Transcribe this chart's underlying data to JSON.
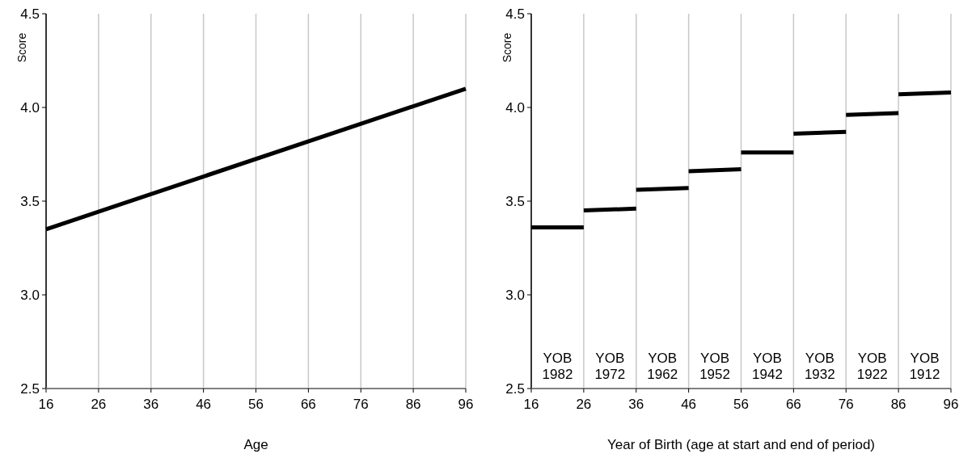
{
  "chart_data": [
    {
      "type": "line",
      "xlabel": "Age",
      "ylabel": "Score",
      "xlim": [
        16,
        96
      ],
      "xticks": [
        16,
        26,
        36,
        46,
        56,
        66,
        76,
        86,
        96
      ],
      "ylim": [
        2.5,
        4.5
      ],
      "yticks": [
        {
          "value": 2.5,
          "label": "2.5"
        },
        {
          "value": 3,
          "label": "3.0"
        },
        {
          "value": 3.5,
          "label": "3.5"
        },
        {
          "value": 4,
          "label": "4.0"
        },
        {
          "value": 4.5,
          "label": "4.5"
        }
      ],
      "grid": "x",
      "series": [
        {
          "color": "#000000",
          "x": [
            16,
            96
          ],
          "values": [
            3.35,
            4.1
          ]
        }
      ]
    },
    {
      "type": "line",
      "xlabel": "Year of Birth (age at start and end of period)",
      "ylabel": "Score",
      "xlim": [
        16,
        96
      ],
      "xticks": [
        16,
        26,
        36,
        46,
        56,
        66,
        76,
        86,
        96
      ],
      "ylim": [
        2.5,
        4.5
      ],
      "yticks": [
        {
          "value": 2.5,
          "label": "2.5"
        },
        {
          "value": 3,
          "label": "3.0"
        },
        {
          "value": 3.5,
          "label": "3.5"
        },
        {
          "value": 4,
          "label": "4.0"
        },
        {
          "value": 4.5,
          "label": "4.5"
        }
      ],
      "grid": "x",
      "series": [
        {
          "color": "#000000",
          "x": [
            16,
            26
          ],
          "values": [
            3.36,
            3.36
          ]
        },
        {
          "color": "#000000",
          "x": [
            26,
            36
          ],
          "values": [
            3.45,
            3.46
          ]
        },
        {
          "color": "#000000",
          "x": [
            36,
            46
          ],
          "values": [
            3.56,
            3.57
          ]
        },
        {
          "color": "#000000",
          "x": [
            46,
            56
          ],
          "values": [
            3.66,
            3.67
          ]
        },
        {
          "color": "#000000",
          "x": [
            56,
            66
          ],
          "values": [
            3.76,
            3.76
          ]
        },
        {
          "color": "#000000",
          "x": [
            66,
            76
          ],
          "values": [
            3.86,
            3.87
          ]
        },
        {
          "color": "#000000",
          "x": [
            76,
            86
          ],
          "values": [
            3.96,
            3.97
          ]
        },
        {
          "color": "#000000",
          "x": [
            86,
            96
          ],
          "values": [
            4.07,
            4.08
          ]
        }
      ],
      "annotations": [
        "YOB\n1982",
        "YOB\n1972",
        "YOB\n1962",
        "YOB\n1952",
        "YOB\n1942",
        "YOB\n1932",
        "YOB\n1922",
        "YOB\n1912"
      ]
    }
  ]
}
